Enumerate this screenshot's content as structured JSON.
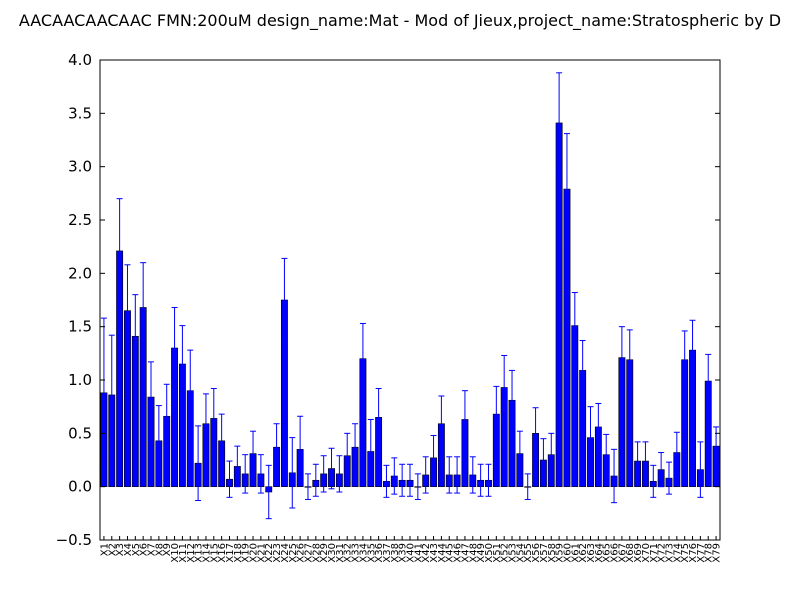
{
  "chart_data": {
    "type": "bar",
    "title": "AACAACAACAAC  FMN:200uM  design_name:Mat - Mod of Jieux,project_name:Stratospheric by D",
    "xlabel": "",
    "ylabel": "",
    "ylim": [
      -0.5,
      4.0
    ],
    "yticks": [
      "−0.5",
      "0.0",
      "0.5",
      "1.0",
      "1.5",
      "2.0",
      "2.5",
      "3.0",
      "3.5",
      "4.0"
    ],
    "bar_color": "#0000ff",
    "error_color": "#0000ff",
    "grid": false,
    "categories": [
      "X1",
      "X2",
      "X3",
      "X4",
      "X5",
      "X6",
      "X7",
      "X8",
      "X9",
      "X10",
      "X11",
      "X12",
      "X13",
      "X14",
      "X15",
      "X16",
      "X17",
      "X18",
      "X19",
      "X20",
      "X21",
      "X22",
      "X23",
      "X24",
      "X25",
      "X26",
      "X27",
      "X28",
      "X29",
      "X30",
      "X31",
      "X32",
      "X33",
      "X34",
      "X35",
      "X36",
      "X37",
      "X38",
      "X39",
      "X40",
      "X41",
      "X42",
      "X43",
      "X44",
      "X45",
      "X46",
      "X47",
      "X48",
      "X49",
      "X50",
      "X51",
      "X52",
      "X53",
      "X54",
      "X55",
      "X56",
      "X57",
      "X58",
      "X59",
      "X60",
      "X61",
      "X62",
      "X63",
      "X64",
      "X65",
      "X66",
      "X67",
      "X68",
      "X69",
      "X70",
      "X71",
      "X72",
      "X73",
      "X74",
      "X75",
      "X76",
      "X77",
      "X78",
      "X79"
    ],
    "values": [
      0.88,
      0.86,
      2.21,
      1.65,
      1.41,
      1.68,
      0.84,
      0.43,
      0.66,
      1.3,
      1.15,
      0.9,
      0.22,
      0.59,
      0.64,
      0.43,
      0.07,
      0.19,
      0.12,
      0.31,
      0.12,
      -0.05,
      0.37,
      1.75,
      0.13,
      0.35,
      0.0,
      0.06,
      0.12,
      0.17,
      0.12,
      0.29,
      0.37,
      1.2,
      0.33,
      0.65,
      0.05,
      0.1,
      0.06,
      0.06,
      0.0,
      0.11,
      0.27,
      0.59,
      0.11,
      0.11,
      0.63,
      0.11,
      0.06,
      0.06,
      0.68,
      0.93,
      0.81,
      0.31,
      0.0,
      0.5,
      0.25,
      0.3,
      3.41,
      2.79,
      1.51,
      1.09,
      0.46,
      0.56,
      0.3,
      0.1,
      1.21,
      1.19,
      0.24,
      0.24,
      0.05,
      0.16,
      0.08,
      0.32,
      1.19,
      1.28,
      0.16,
      0.99,
      0.38
    ],
    "errors": [
      0.7,
      0.56,
      0.49,
      0.43,
      0.39,
      0.42,
      0.33,
      0.33,
      0.3,
      0.38,
      0.36,
      0.38,
      0.35,
      0.28,
      0.28,
      0.25,
      0.17,
      0.19,
      0.18,
      0.21,
      0.18,
      0.25,
      0.22,
      0.39,
      0.33,
      0.31,
      0.12,
      0.15,
      0.17,
      0.19,
      0.17,
      0.21,
      0.22,
      0.33,
      0.3,
      0.27,
      0.15,
      0.17,
      0.15,
      0.15,
      0.12,
      0.17,
      0.21,
      0.26,
      0.17,
      0.17,
      0.27,
      0.17,
      0.15,
      0.15,
      0.26,
      0.3,
      0.28,
      0.21,
      0.12,
      0.24,
      0.2,
      0.2,
      0.47,
      0.52,
      0.31,
      0.28,
      0.29,
      0.22,
      0.19,
      0.25,
      0.29,
      0.28,
      0.18,
      0.18,
      0.15,
      0.16,
      0.15,
      0.19,
      0.27,
      0.28,
      0.26,
      0.25,
      0.18
    ]
  }
}
